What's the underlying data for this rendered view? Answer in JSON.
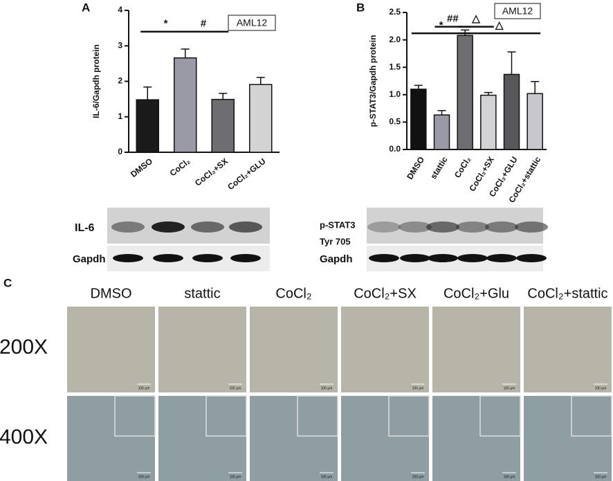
{
  "chart_data": [
    {
      "type": "bar",
      "panel": "A",
      "y_label": "IL-6/Gapdh protein",
      "legend_box": "AML12",
      "annotations": [
        "*",
        "#"
      ],
      "categories": [
        "DMSO",
        "CoCl₂",
        "CoCl₂+SX",
        "CoCl₂+GLU"
      ],
      "values": [
        1.48,
        2.66,
        1.49,
        1.91
      ],
      "errors": [
        0.36,
        0.25,
        0.17,
        0.2
      ],
      "colors": [
        "#1a1a1a",
        "#9a9aa6",
        "#6e6e72",
        "#d3d3d6"
      ],
      "ylim": [
        0,
        4
      ],
      "yticks": [
        0,
        1,
        2,
        3,
        4
      ]
    },
    {
      "type": "bar",
      "panel": "B",
      "y_label": "p-STAT3/Gapdh protein",
      "legend_box": "AML12",
      "annotations": [
        "*",
        "##",
        "△",
        "△"
      ],
      "categories": [
        "DMSO",
        "stattic",
        "CoCl₂",
        "CoCl₂+SX",
        "CoCl₂+GLU",
        "CoCl₂+stattic"
      ],
      "values": [
        1.1,
        0.63,
        2.08,
        0.99,
        1.37,
        1.02
      ],
      "errors": [
        0.07,
        0.08,
        0.1,
        0.05,
        0.41,
        0.22
      ],
      "colors": [
        "#111111",
        "#9a9aa6",
        "#6e6e72",
        "#d3d3d6",
        "#58585c",
        "#c8c8cc"
      ],
      "ylim": [
        0,
        2.5
      ],
      "yticks": [
        {
          "value": 0,
          "label": "0.0"
        },
        0.5,
        {
          "value": 1,
          "label": "1.0"
        },
        1.5,
        {
          "value": 2,
          "label": "2.0"
        },
        2.5
      ]
    }
  ],
  "blots": [
    {
      "target": [
        "IL-6"
      ],
      "control": "Gapdh"
    },
    {
      "target": [
        "p-STAT3",
        "Tyr 705"
      ],
      "control": "Gapdh"
    }
  ],
  "micrographs": {
    "panel": "C",
    "columns": [
      "DMSO",
      "stattic",
      "CoCl₂",
      "CoCl₂+SX",
      "CoCl₂+Glu",
      "CoCl₂+stattic"
    ],
    "rows": [
      "200X",
      "400X"
    ],
    "scale_label": "100 μm"
  }
}
